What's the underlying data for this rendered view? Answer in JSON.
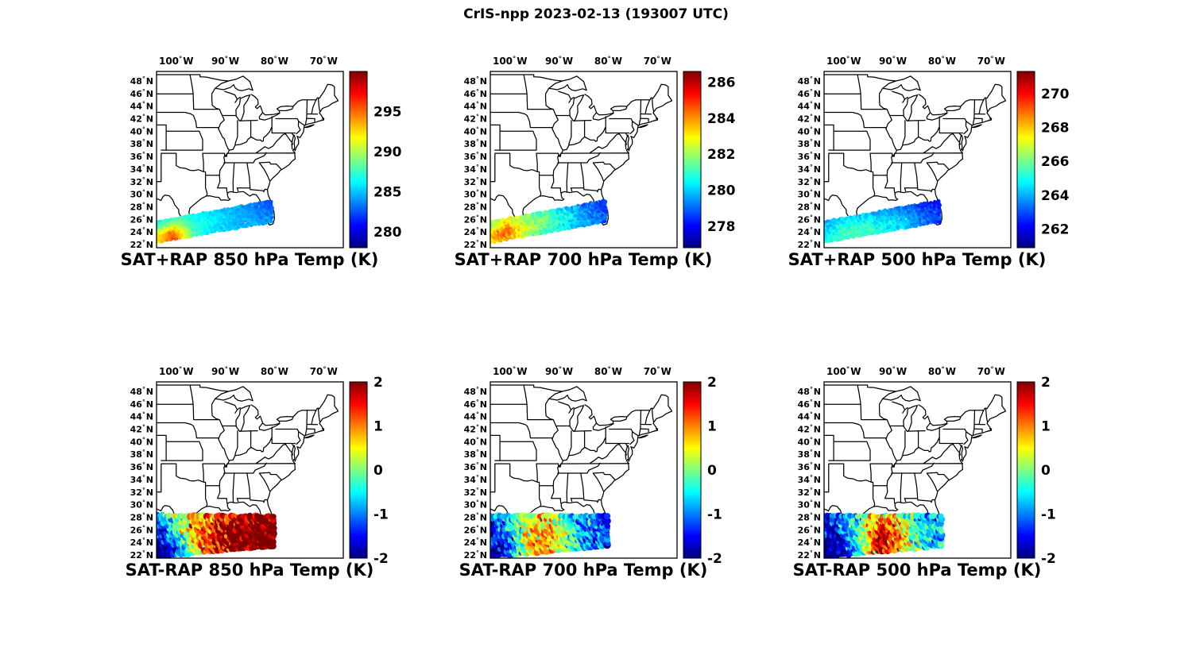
{
  "figure_title": "CrIS-npp 2023-02-13 (193007 UTC)",
  "chart_data": {
    "type": "scatter",
    "description": "Six map panels over the eastern United States showing CrIS-npp satellite retrieval swath temperatures (top row, SAT+RAP) and differences from RAP model (bottom row, SAT-RAP) at 850, 700 and 500 hPa, jet colormap.",
    "colormap": "jet",
    "axes": {
      "lon_range": [
        -104,
        -66
      ],
      "lat_range": [
        21.5,
        49.5
      ],
      "lon_ticks": [
        {
          "label": "100",
          "hemi": "W",
          "value": -100
        },
        {
          "label": "90",
          "hemi": "W",
          "value": -90
        },
        {
          "label": "80",
          "hemi": "W",
          "value": -80
        },
        {
          "label": "70",
          "hemi": "W",
          "value": -70
        }
      ],
      "lat_ticks": [
        {
          "label": "48",
          "hemi": "N",
          "value": 48
        },
        {
          "label": "46",
          "hemi": "N",
          "value": 46
        },
        {
          "label": "44",
          "hemi": "N",
          "value": 44
        },
        {
          "label": "42",
          "hemi": "N",
          "value": 42
        },
        {
          "label": "40",
          "hemi": "N",
          "value": 40
        },
        {
          "label": "38",
          "hemi": "N",
          "value": 38
        },
        {
          "label": "36",
          "hemi": "N",
          "value": 36
        },
        {
          "label": "34",
          "hemi": "N",
          "value": 34
        },
        {
          "label": "32",
          "hemi": "N",
          "value": 32
        },
        {
          "label": "30",
          "hemi": "N",
          "value": 30
        },
        {
          "label": "28",
          "hemi": "N",
          "value": 28
        },
        {
          "label": "26",
          "hemi": "N",
          "value": 26
        },
        {
          "label": "24",
          "hemi": "N",
          "value": 24
        },
        {
          "label": "22",
          "hemi": "N",
          "value": 22
        }
      ]
    },
    "panels": [
      {
        "title": "SAT+RAP 850 hPa Temp (K)",
        "row": 0,
        "col": 0,
        "colorbar": {
          "vmin": 278,
          "vmax": 300,
          "ticks": [
            "295",
            "290",
            "285",
            "280"
          ],
          "tick_values": [
            295,
            290,
            285,
            280
          ]
        },
        "swath": {
          "start": [
            -104.4,
            23.9
          ],
          "end": [
            -80.6,
            27.3
          ],
          "half_width_deg": [
            1.55,
            1.6
          ],
          "noise_sigma": 0.7,
          "values_grid": [
            [
              291,
              296,
              288,
              285.5,
              285,
              284.5,
              284
            ],
            [
              292,
              295,
              287.5,
              286,
              285,
              284.5,
              283.5
            ],
            [
              289,
              291,
              287,
              286,
              285,
              284,
              283
            ],
            [
              286,
              288,
              286.5,
              285.5,
              284.5,
              283.5,
              282.5
            ]
          ]
        }
      },
      {
        "title": "SAT+RAP 700 hPa Temp (K)",
        "row": 0,
        "col": 1,
        "colorbar": {
          "vmin": 276.8,
          "vmax": 286.6,
          "ticks": [
            "286",
            "284",
            "282",
            "280",
            "278"
          ],
          "tick_values": [
            286,
            284,
            282,
            280,
            278
          ]
        },
        "swath": {
          "start": [
            -104.4,
            23.9
          ],
          "end": [
            -80.6,
            27.3
          ],
          "half_width_deg": [
            1.55,
            1.6
          ],
          "noise_sigma": 0.7,
          "values_grid": [
            [
              283,
              284,
              282,
              281,
              280.5,
              279.5,
              279
            ],
            [
              283.5,
              284.5,
              282.5,
              281.5,
              280.5,
              279.5,
              278.8
            ],
            [
              282.5,
              283.5,
              282,
              281.5,
              280.5,
              279.5,
              278.6
            ],
            [
              282,
              283,
              281.5,
              281,
              280,
              279,
              278.5
            ]
          ]
        }
      },
      {
        "title": "SAT+RAP 500 hPa Temp (K)",
        "row": 0,
        "col": 2,
        "colorbar": {
          "vmin": 260.9,
          "vmax": 271.3,
          "ticks": [
            "270",
            "268",
            "266",
            "264",
            "262"
          ],
          "tick_values": [
            270,
            268,
            266,
            264,
            262
          ]
        },
        "swath": {
          "start": [
            -104.4,
            23.9
          ],
          "end": [
            -80.6,
            27.3
          ],
          "half_width_deg": [
            1.55,
            1.6
          ],
          "noise_sigma": 0.6,
          "values_grid": [
            [
              265,
              265.5,
              265.5,
              265,
              264.5,
              263.5,
              263
            ],
            [
              264.5,
              265.5,
              265.5,
              265,
              264.5,
              263.5,
              262.8
            ],
            [
              264,
              265,
              265,
              264.5,
              264,
              263.2,
              262.6
            ],
            [
              263.5,
              264.5,
              264.5,
              264,
              263.5,
              262.8,
              262.2
            ]
          ]
        }
      },
      {
        "title": "SAT-RAP 850 hPa Temp (K)",
        "row": 1,
        "col": 0,
        "colorbar": {
          "vmin": -2,
          "vmax": 2,
          "ticks": [
            "2",
            "1",
            "0",
            "-1",
            "-2"
          ],
          "tick_values": [
            2,
            1,
            0,
            -1,
            -2
          ]
        },
        "swath": {
          "start": [
            -104.3,
            25.0
          ],
          "end": [
            -80.2,
            25.8
          ],
          "half_width_deg": [
            3.2,
            2.3
          ],
          "noise_sigma": 0.9,
          "values_grid": [
            [
              -2,
              -1.6,
              0.4,
              1.3,
              2,
              2.2,
              2.2
            ],
            [
              -2.2,
              -1.2,
              0.6,
              1.5,
              2.2,
              2.2,
              2.2
            ],
            [
              -1.8,
              -0.6,
              0.8,
              1.4,
              2,
              2.2,
              2
            ],
            [
              -1.2,
              -0.2,
              0.6,
              1,
              1.6,
              2,
              2
            ]
          ]
        }
      },
      {
        "title": "SAT-RAP 700 hPa Temp (K)",
        "row": 1,
        "col": 1,
        "colorbar": {
          "vmin": -2,
          "vmax": 2,
          "ticks": [
            "2",
            "1",
            "0",
            "-1",
            "-2"
          ],
          "tick_values": [
            2,
            1,
            0,
            -1,
            -2
          ]
        },
        "swath": {
          "start": [
            -104.3,
            25.0
          ],
          "end": [
            -80.2,
            25.8
          ],
          "half_width_deg": [
            3.2,
            2.3
          ],
          "noise_sigma": 0.9,
          "values_grid": [
            [
              -2.2,
              -1.5,
              0.4,
              0.9,
              -0.3,
              -1,
              -1.2
            ],
            [
              -2,
              -1.2,
              0.6,
              1,
              0,
              -1,
              -1.1
            ],
            [
              -1.6,
              -0.9,
              0.5,
              0.8,
              -0.1,
              -0.9,
              -1.3
            ],
            [
              -1.3,
              -0.7,
              0.3,
              0.5,
              -0.4,
              -1.1,
              -1.5
            ]
          ]
        }
      },
      {
        "title": "SAT-RAP 500 hPa Temp (K)",
        "row": 1,
        "col": 2,
        "colorbar": {
          "vmin": -2,
          "vmax": 2,
          "ticks": [
            "2",
            "1",
            "0",
            "-1",
            "-2"
          ],
          "tick_values": [
            2,
            1,
            0,
            -1,
            -2
          ]
        },
        "swath": {
          "start": [
            -104.3,
            25.0
          ],
          "end": [
            -80.2,
            25.8
          ],
          "half_width_deg": [
            3.2,
            2.3
          ],
          "noise_sigma": 0.9,
          "values_grid": [
            [
              -2.2,
              -1.8,
              -0.6,
              1.6,
              0.6,
              -0.4,
              -0.6
            ],
            [
              -2.2,
              -1.5,
              -0.2,
              2,
              1,
              -0.2,
              -0.8
            ],
            [
              -1.9,
              -1.2,
              -0.1,
              1.5,
              0.6,
              -0.5,
              -0.6
            ],
            [
              -1.5,
              -1,
              -0.4,
              1,
              0.3,
              -0.8,
              -1
            ]
          ]
        }
      }
    ]
  }
}
